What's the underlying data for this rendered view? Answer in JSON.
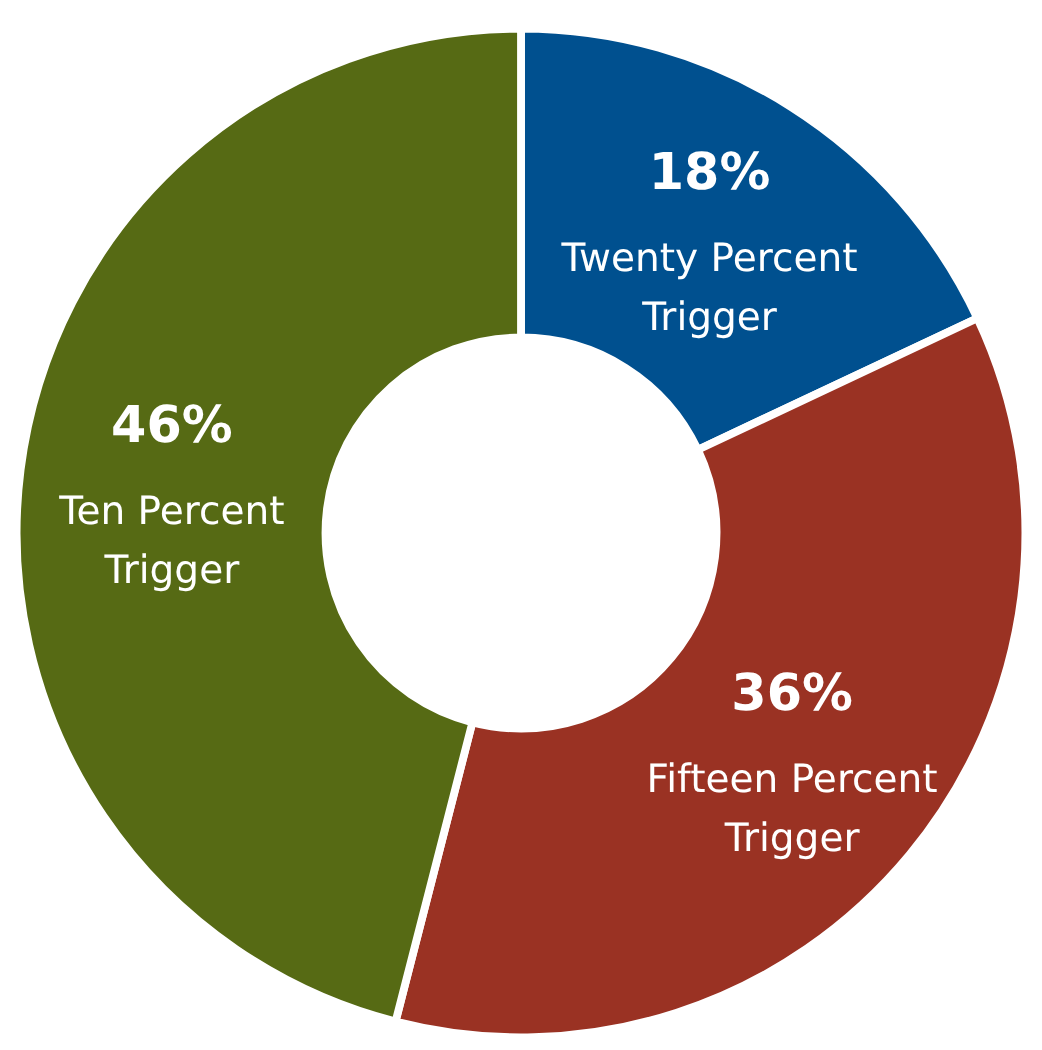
{
  "chart_data": {
    "type": "donut",
    "categories": [
      "Twenty Percent Trigger",
      "Fifteen Percent Trigger",
      "Ten Percent Trigger"
    ],
    "values": [
      18,
      36,
      46
    ],
    "colors": [
      "#00508f",
      "#9a3223",
      "#566a14"
    ],
    "value_labels": [
      "18%",
      "36%",
      "46%"
    ]
  }
}
